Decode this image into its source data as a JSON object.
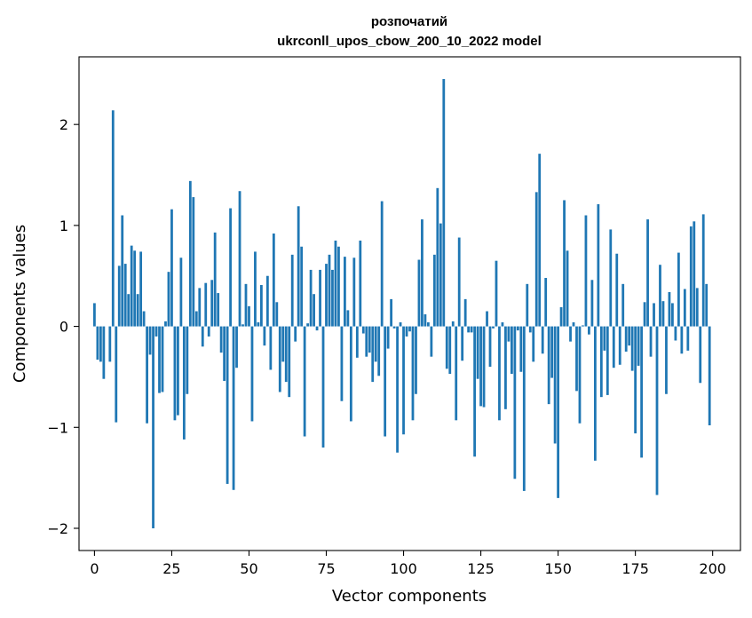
{
  "chart_data": {
    "type": "bar",
    "title": "розпочатий",
    "subtitle": "ukrconll_upos_cbow_200_10_2022 model",
    "xlabel": "Vector components",
    "ylabel": "Components values",
    "xlim": [
      -5,
      209
    ],
    "ylim": [
      -2.22,
      2.67
    ],
    "xticks": [
      0,
      25,
      50,
      75,
      100,
      125,
      150,
      175,
      200
    ],
    "yticks": [
      -2,
      -1,
      0,
      1,
      2
    ],
    "xtick_labels": [
      "0",
      "25",
      "50",
      "75",
      "100",
      "125",
      "150",
      "175",
      "200"
    ],
    "ytick_labels": [
      "−2",
      "−1",
      "0",
      "1",
      "2"
    ],
    "bar_color": "#1f77b4",
    "grid": false,
    "values": [
      0.23,
      -0.33,
      -0.35,
      -0.52,
      0.0,
      -0.35,
      2.14,
      -0.95,
      0.6,
      1.1,
      0.62,
      0.32,
      0.8,
      0.75,
      0.32,
      0.74,
      0.15,
      -0.96,
      -0.28,
      -2.0,
      -0.1,
      -0.66,
      -0.65,
      0.05,
      0.54,
      1.16,
      -0.93,
      -0.88,
      0.68,
      -1.12,
      -0.67,
      1.44,
      1.28,
      0.15,
      0.38,
      -0.2,
      0.43,
      -0.1,
      0.46,
      0.93,
      0.33,
      -0.26,
      -0.54,
      -1.56,
      1.17,
      -1.62,
      -0.41,
      1.34,
      0.02,
      0.42,
      0.2,
      -0.94,
      0.74,
      0.04,
      0.41,
      -0.19,
      0.5,
      -0.43,
      0.92,
      0.24,
      -0.65,
      -0.35,
      -0.55,
      -0.7,
      0.71,
      -0.15,
      1.19,
      0.79,
      -1.09,
      0.03,
      0.56,
      0.32,
      -0.04,
      0.56,
      -1.2,
      0.62,
      0.71,
      0.56,
      0.85,
      0.79,
      -0.74,
      0.69,
      0.16,
      -0.94,
      0.68,
      -0.31,
      0.85,
      -0.07,
      -0.3,
      -0.26,
      -0.55,
      -0.35,
      -0.49,
      1.24,
      -1.09,
      -0.22,
      0.27,
      -0.02,
      -1.25,
      0.04,
      -1.07,
      -0.1,
      -0.05,
      -0.93,
      -0.67,
      0.66,
      1.06,
      0.12,
      0.04,
      -0.3,
      0.71,
      1.37,
      1.02,
      2.45,
      -0.42,
      -0.47,
      0.05,
      -0.93,
      0.88,
      -0.34,
      0.27,
      -0.06,
      -0.06,
      -1.29,
      -0.52,
      -0.79,
      -0.8,
      0.15,
      -0.4,
      -0.02,
      0.65,
      -0.93,
      0.04,
      -0.82,
      -0.15,
      -0.47,
      -1.51,
      -0.04,
      -0.45,
      -1.63,
      0.42,
      -0.06,
      -0.35,
      1.33,
      1.71,
      -0.27,
      0.48,
      -0.77,
      -0.51,
      -1.16,
      -1.7,
      0.19,
      1.25,
      0.75,
      -0.15,
      0.04,
      -0.64,
      -0.96,
      0.01,
      1.1,
      -0.08,
      0.46,
      -1.33,
      1.21,
      -0.7,
      -0.24,
      -0.68,
      0.96,
      -0.41,
      0.72,
      -0.38,
      0.42,
      -0.25,
      -0.19,
      -0.44,
      -1.06,
      -0.39,
      -1.3,
      0.24,
      1.06,
      -0.3,
      0.23,
      -1.67,
      0.61,
      0.25,
      -0.67,
      0.34,
      0.23,
      -0.14,
      0.73,
      -0.27,
      0.37,
      -0.24,
      0.99,
      1.04,
      0.38,
      -0.56,
      1.11,
      0.42,
      -0.98
    ]
  }
}
